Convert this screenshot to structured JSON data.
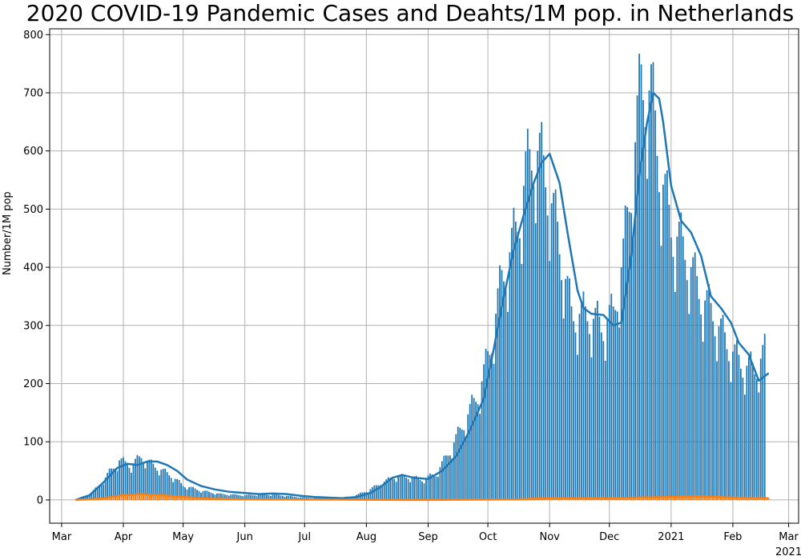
{
  "chart_data": {
    "type": "bar",
    "title": "2020 COVID-19 Pandemic Cases and Deahts/1M pop. in Netherlands",
    "xlabel": "",
    "ylabel": "Number/1M pop",
    "ylim": [
      -40,
      810
    ],
    "xlim": [
      "2020-02-24",
      "2021-03-06"
    ],
    "grid": true,
    "legend": "none",
    "x_ticks": [
      "Mar",
      "Apr",
      "May",
      "Jun",
      "Jul",
      "Aug",
      "Sep",
      "Oct",
      "Nov",
      "Dec",
      "2021",
      "Feb",
      "Mar"
    ],
    "x_tick_dates": [
      "2020-03-01",
      "2020-04-01",
      "2020-05-01",
      "2020-06-01",
      "2020-07-01",
      "2020-08-01",
      "2020-09-01",
      "2020-10-01",
      "2020-11-01",
      "2020-12-01",
      "2021-01-01",
      "2021-02-01",
      "2021-03-01"
    ],
    "x_offset_label": "2021",
    "y_ticks": [
      0,
      100,
      200,
      300,
      400,
      500,
      600,
      700,
      800
    ],
    "colors": {
      "cases": "#1f77b4",
      "deaths": "#ff7f0e"
    },
    "series": [
      {
        "role": "daily cases (bars)",
        "points": [
          [
            "2020-03-08",
            1
          ],
          [
            "2020-03-15",
            10
          ],
          [
            "2020-03-20",
            25
          ],
          [
            "2020-03-25",
            48
          ],
          [
            "2020-03-30",
            68
          ],
          [
            "2020-04-05",
            60
          ],
          [
            "2020-04-10",
            75
          ],
          [
            "2020-04-15",
            62
          ],
          [
            "2020-04-20",
            52
          ],
          [
            "2020-04-25",
            42
          ],
          [
            "2020-05-01",
            25
          ],
          [
            "2020-05-10",
            16
          ],
          [
            "2020-05-20",
            10
          ],
          [
            "2020-06-01",
            8
          ],
          [
            "2020-06-15",
            9
          ],
          [
            "2020-07-01",
            4
          ],
          [
            "2020-07-15",
            3
          ],
          [
            "2020-07-25",
            6
          ],
          [
            "2020-08-01",
            15
          ],
          [
            "2020-08-08",
            28
          ],
          [
            "2020-08-15",
            40
          ],
          [
            "2020-08-22",
            40
          ],
          [
            "2020-08-29",
            35
          ],
          [
            "2020-09-05",
            45
          ],
          [
            "2020-09-12",
            85
          ],
          [
            "2020-09-20",
            140
          ],
          [
            "2020-09-27",
            190
          ],
          [
            "2020-10-02",
            260
          ],
          [
            "2020-10-08",
            380
          ],
          [
            "2020-10-15",
            460
          ],
          [
            "2020-10-20",
            560
          ],
          [
            "2020-10-25",
            610
          ],
          [
            "2020-10-30",
            560
          ],
          [
            "2020-11-05",
            460
          ],
          [
            "2020-11-12",
            320
          ],
          [
            "2020-11-20",
            320
          ],
          [
            "2020-11-27",
            300
          ],
          [
            "2020-12-03",
            320
          ],
          [
            "2020-12-08",
            420
          ],
          [
            "2020-12-13",
            580
          ],
          [
            "2020-12-17",
            720
          ],
          [
            "2020-12-22",
            700
          ],
          [
            "2020-12-27",
            560
          ],
          [
            "2021-01-01",
            470
          ],
          [
            "2021-01-08",
            430
          ],
          [
            "2021-01-15",
            360
          ],
          [
            "2021-01-22",
            320
          ],
          [
            "2021-01-29",
            270
          ],
          [
            "2021-02-05",
            235
          ],
          [
            "2021-02-12",
            225
          ],
          [
            "2021-02-17",
            255
          ]
        ]
      },
      {
        "role": "daily cases rolling average (line)",
        "points": [
          [
            "2020-03-08",
            0
          ],
          [
            "2020-03-15",
            8
          ],
          [
            "2020-03-22",
            30
          ],
          [
            "2020-03-29",
            55
          ],
          [
            "2020-04-03",
            62
          ],
          [
            "2020-04-08",
            60
          ],
          [
            "2020-04-13",
            66
          ],
          [
            "2020-04-18",
            66
          ],
          [
            "2020-04-23",
            60
          ],
          [
            "2020-04-28",
            50
          ],
          [
            "2020-05-03",
            35
          ],
          [
            "2020-05-10",
            24
          ],
          [
            "2020-05-17",
            18
          ],
          [
            "2020-05-24",
            14
          ],
          [
            "2020-06-01",
            12
          ],
          [
            "2020-06-08",
            10
          ],
          [
            "2020-06-15",
            11
          ],
          [
            "2020-06-22",
            10
          ],
          [
            "2020-06-29",
            7
          ],
          [
            "2020-07-06",
            5
          ],
          [
            "2020-07-13",
            4
          ],
          [
            "2020-07-20",
            3
          ],
          [
            "2020-07-27",
            5
          ],
          [
            "2020-08-03",
            12
          ],
          [
            "2020-08-08",
            22
          ],
          [
            "2020-08-14",
            38
          ],
          [
            "2020-08-19",
            43
          ],
          [
            "2020-08-25",
            38
          ],
          [
            "2020-09-01",
            36
          ],
          [
            "2020-09-08",
            50
          ],
          [
            "2020-09-15",
            75
          ],
          [
            "2020-09-22",
            120
          ],
          [
            "2020-09-29",
            175
          ],
          [
            "2020-10-04",
            260
          ],
          [
            "2020-10-09",
            350
          ],
          [
            "2020-10-14",
            430
          ],
          [
            "2020-10-19",
            490
          ],
          [
            "2020-10-24",
            545
          ],
          [
            "2020-10-28",
            580
          ],
          [
            "2020-11-01",
            595
          ],
          [
            "2020-11-06",
            545
          ],
          [
            "2020-11-10",
            460
          ],
          [
            "2020-11-15",
            360
          ],
          [
            "2020-11-18",
            330
          ],
          [
            "2020-11-22",
            320
          ],
          [
            "2020-11-28",
            318
          ],
          [
            "2020-12-03",
            300
          ],
          [
            "2020-12-07",
            305
          ],
          [
            "2020-12-12",
            420
          ],
          [
            "2020-12-16",
            560
          ],
          [
            "2020-12-20",
            650
          ],
          [
            "2020-12-23",
            700
          ],
          [
            "2020-12-26",
            690
          ],
          [
            "2020-12-28",
            650
          ],
          [
            "2021-01-01",
            540
          ],
          [
            "2021-01-06",
            480
          ],
          [
            "2021-01-11",
            460
          ],
          [
            "2021-01-16",
            420
          ],
          [
            "2021-01-21",
            350
          ],
          [
            "2021-01-26",
            330
          ],
          [
            "2021-01-31",
            305
          ],
          [
            "2021-02-04",
            270
          ],
          [
            "2021-02-09",
            250
          ],
          [
            "2021-02-14",
            205
          ],
          [
            "2021-02-19",
            218
          ]
        ]
      },
      {
        "role": "daily deaths (bars and rolling average)",
        "points": [
          [
            "2020-03-08",
            0
          ],
          [
            "2020-03-20",
            2
          ],
          [
            "2020-04-01",
            8
          ],
          [
            "2020-04-10",
            10
          ],
          [
            "2020-04-20",
            8
          ],
          [
            "2020-05-01",
            5
          ],
          [
            "2020-05-15",
            2
          ],
          [
            "2020-06-01",
            1
          ],
          [
            "2020-09-01",
            0
          ],
          [
            "2020-10-15",
            1
          ],
          [
            "2020-11-01",
            3
          ],
          [
            "2020-12-01",
            3
          ],
          [
            "2021-01-01",
            5
          ],
          [
            "2021-01-15",
            6
          ],
          [
            "2021-02-01",
            4
          ],
          [
            "2021-02-19",
            3
          ]
        ]
      }
    ]
  }
}
